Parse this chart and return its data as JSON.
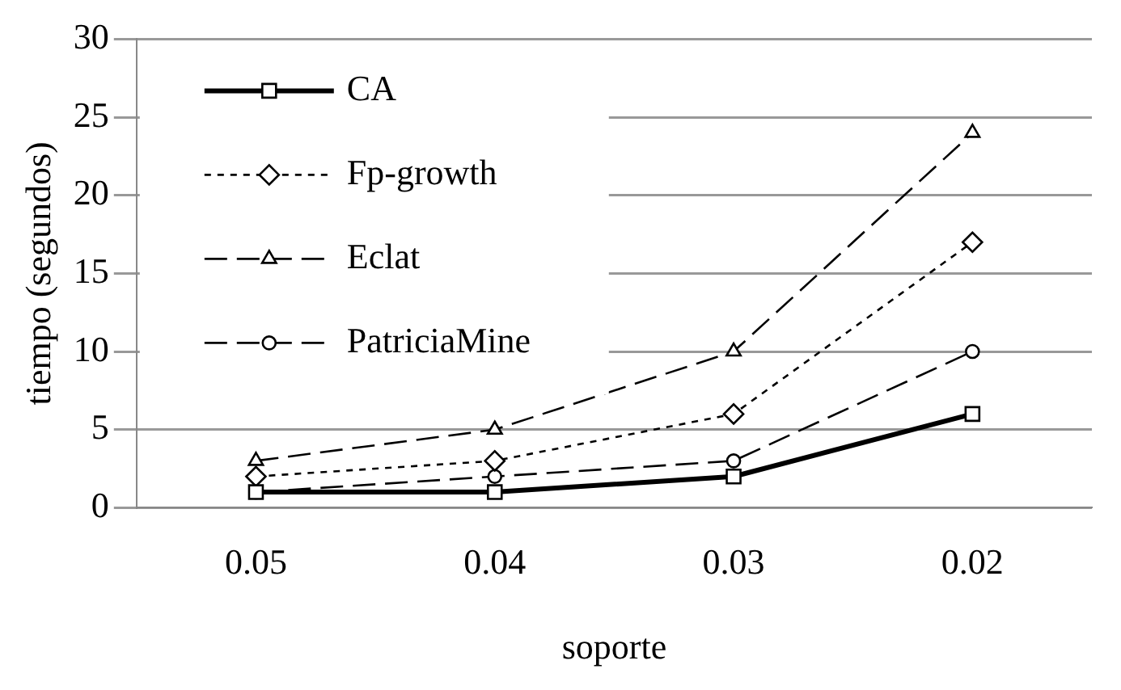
{
  "chart_data": {
    "type": "line",
    "xlabel": "soporte",
    "ylabel": "tiempo (segundos)",
    "categories": [
      "0.05",
      "0.04",
      "0.03",
      "0.02"
    ],
    "series": [
      {
        "name": "CA",
        "color": "#000000",
        "values": [
          1,
          1,
          2,
          6
        ],
        "marker": "square",
        "line_style": "solid"
      },
      {
        "name": "Fp-growth",
        "color": "#000000",
        "values": [
          2,
          3,
          6,
          17
        ],
        "marker": "diamond",
        "line_style": "dotted"
      },
      {
        "name": "Eclat",
        "color": "#000000",
        "values": [
          3,
          5,
          10,
          24
        ],
        "marker": "triangle",
        "line_style": "dashed"
      },
      {
        "name": "PatriciaMine",
        "color": "#000000",
        "values": [
          1,
          2,
          3,
          10
        ],
        "marker": "circle",
        "line_style": "dashed"
      }
    ],
    "ylim": [
      0,
      30
    ],
    "yticks": [
      0,
      5,
      10,
      15,
      20,
      25,
      30
    ],
    "grid": "y",
    "legend": "top left"
  }
}
